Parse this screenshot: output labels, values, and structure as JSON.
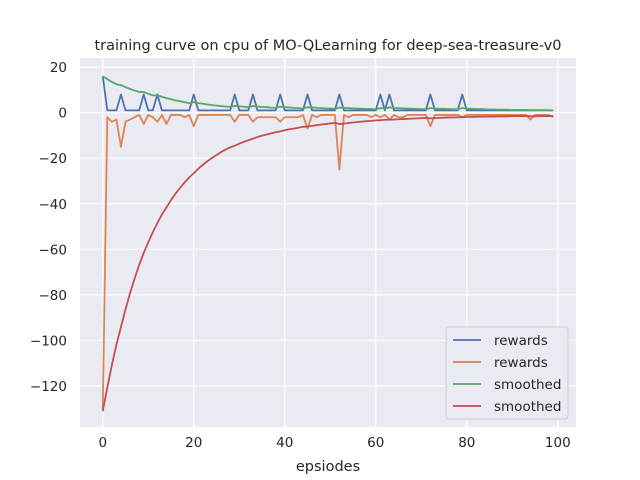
{
  "chart_data": {
    "type": "line",
    "title": "training curve on cpu of MO-QLearning for deep-sea-treasure-v0",
    "xlabel": "epsiodes",
    "ylabel": "",
    "xlim": [
      -5,
      104
    ],
    "ylim": [
      -138,
      24
    ],
    "xticks": [
      0,
      20,
      40,
      60,
      80,
      100
    ],
    "yticks": [
      20,
      0,
      -20,
      -40,
      -60,
      -80,
      -100,
      -120
    ],
    "grid": true,
    "legend_position": "bottom-right",
    "series": [
      {
        "name": "rewards",
        "color": "#4c72b0",
        "values": [
          16,
          1,
          1,
          1,
          8,
          1,
          1,
          1,
          1,
          8,
          1,
          1,
          8,
          1,
          1,
          1,
          1,
          1,
          1,
          1,
          8,
          1,
          1,
          1,
          1,
          1,
          1,
          1,
          1,
          8,
          1,
          1,
          1,
          8,
          1,
          1,
          1,
          1,
          1,
          8,
          1,
          1,
          1,
          1,
          1,
          8,
          1,
          1,
          1,
          1,
          1,
          1,
          8,
          1,
          1,
          1,
          1,
          1,
          1,
          1,
          1,
          8,
          1,
          8,
          1,
          1,
          1,
          1,
          1,
          1,
          1,
          1,
          8,
          1,
          1,
          1,
          1,
          1,
          1,
          8,
          1,
          1,
          1,
          1,
          1,
          1,
          1,
          1,
          1,
          1,
          1,
          1,
          1,
          1,
          1,
          1,
          1,
          1,
          1,
          1
        ]
      },
      {
        "name": "rewards",
        "color": "#dd8452",
        "values": [
          -131,
          -2,
          -4,
          -3,
          -15,
          -4,
          -3,
          -2,
          -1,
          -5,
          -1,
          -2,
          -4,
          -1,
          -5,
          -1,
          -1,
          -1,
          -2,
          -1,
          -6,
          -1,
          -1,
          -1,
          -1,
          -1,
          -1,
          -1,
          -1,
          -4,
          -1,
          -1,
          -1,
          -4,
          -2,
          -2,
          -2,
          -2,
          -2,
          -4,
          -2,
          -2,
          -2,
          -2,
          -1,
          -7,
          -1,
          -2,
          -1,
          -1,
          -1,
          -1,
          -25,
          -1,
          -2,
          -1,
          -1,
          -1,
          -1,
          -2,
          -1,
          -2,
          -1,
          -3,
          -1,
          -2,
          -2,
          -1,
          -1,
          -1,
          -1,
          -1,
          -6,
          -1,
          -1,
          -1,
          -1,
          -1,
          -1,
          -2,
          -1,
          -1,
          -1,
          -1,
          -1,
          -1,
          -1,
          -1,
          -1,
          -1,
          -1,
          -1,
          -1,
          -1,
          -3,
          -1,
          -1,
          -1,
          -1,
          -2
        ]
      },
      {
        "name": "smoothed",
        "color": "#55a868",
        "values": [
          16,
          14.7,
          13.5,
          12.5,
          12.1,
          11.2,
          10.4,
          9.7,
          9.1,
          9.1,
          8.3,
          7.6,
          7.6,
          7.0,
          6.4,
          5.9,
          5.4,
          5.0,
          4.6,
          4.2,
          4.6,
          4.2,
          3.9,
          3.6,
          3.3,
          3.1,
          2.9,
          2.7,
          2.5,
          3.0,
          2.8,
          2.6,
          2.4,
          2.9,
          2.7,
          2.5,
          2.4,
          2.2,
          2.1,
          2.6,
          2.4,
          2.3,
          2.1,
          2.0,
          1.9,
          2.4,
          2.3,
          2.1,
          2.0,
          1.9,
          1.8,
          1.7,
          2.2,
          2.1,
          2.0,
          1.9,
          1.8,
          1.7,
          1.6,
          1.6,
          1.5,
          2.0,
          1.9,
          2.3,
          2.1,
          2.0,
          1.9,
          1.8,
          1.7,
          1.6,
          1.6,
          1.5,
          2.0,
          1.8,
          1.7,
          1.7,
          1.6,
          1.5,
          1.5,
          2.0,
          1.8,
          1.7,
          1.6,
          1.6,
          1.5,
          1.4,
          1.4,
          1.3,
          1.3,
          1.3,
          1.2,
          1.2,
          1.2,
          1.2,
          1.1,
          1.1,
          1.1,
          1.1,
          1.1,
          1.0
        ]
      },
      {
        "name": "smoothed",
        "color": "#c44e52",
        "values": [
          -131,
          -120.7,
          -110.8,
          -101.9,
          -94.1,
          -86.4,
          -79.2,
          -72.8,
          -66.9,
          -61.6,
          -56.9,
          -52.5,
          -48.5,
          -44.7,
          -41.6,
          -38.4,
          -35.5,
          -33.0,
          -30.6,
          -28.4,
          -26.6,
          -24.6,
          -22.9,
          -21.3,
          -19.9,
          -18.6,
          -17.3,
          -16.2,
          -15.2,
          -14.5,
          -13.6,
          -12.8,
          -12.1,
          -11.4,
          -10.7,
          -10.1,
          -9.6,
          -9.1,
          -8.6,
          -8.2,
          -7.7,
          -7.3,
          -7.0,
          -6.6,
          -6.2,
          -6.1,
          -5.8,
          -5.5,
          -5.2,
          -5.0,
          -4.7,
          -4.5,
          -5.0,
          -4.8,
          -4.5,
          -4.3,
          -4.1,
          -3.9,
          -3.7,
          -3.6,
          -3.4,
          -3.3,
          -3.1,
          -3.1,
          -3.0,
          -2.9,
          -2.8,
          -2.7,
          -2.6,
          -2.5,
          -2.4,
          -2.3,
          -2.5,
          -2.4,
          -2.3,
          -2.2,
          -2.1,
          -2.1,
          -2.0,
          -2.0,
          -1.9,
          -1.9,
          -1.8,
          -1.8,
          -1.7,
          -1.7,
          -1.7,
          -1.6,
          -1.6,
          -1.6,
          -1.5,
          -1.5,
          -1.5,
          -1.5,
          -1.6,
          -1.6,
          -1.5,
          -1.5,
          -1.5,
          -1.5
        ]
      }
    ]
  }
}
